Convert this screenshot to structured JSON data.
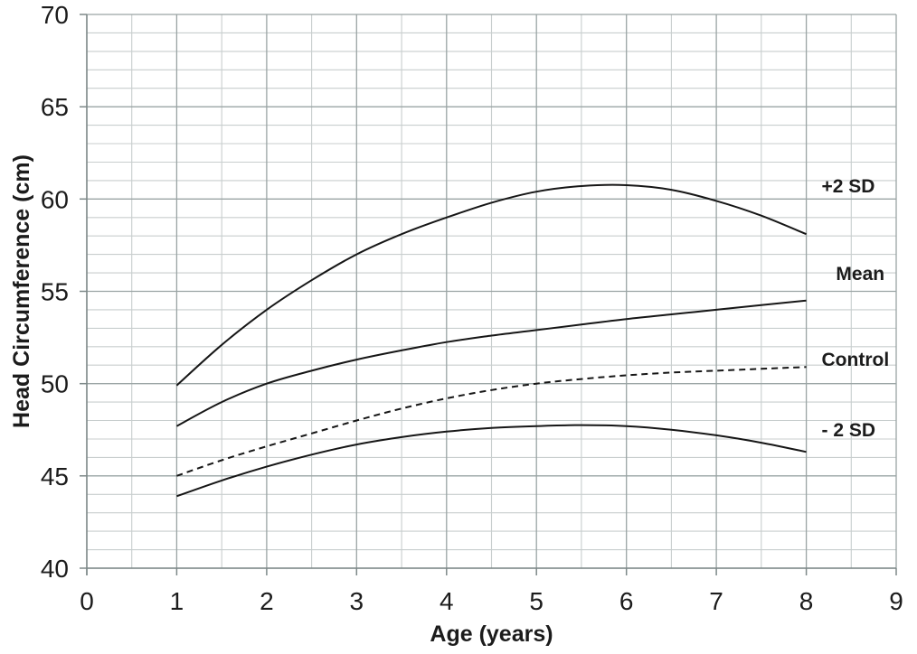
{
  "chart_data": {
    "type": "line",
    "title": "",
    "xlabel": "Age (years)",
    "ylabel": "Head Circumference (cm)",
    "xlim": [
      0,
      9
    ],
    "ylim": [
      40,
      70
    ],
    "x_major_ticks": [
      0,
      1,
      2,
      3,
      4,
      5,
      6,
      7,
      8,
      9
    ],
    "y_major_ticks": [
      40,
      45,
      50,
      55,
      60,
      65,
      70
    ],
    "x_minor_step": 0.5,
    "y_minor_step": 1,
    "grid": "major and minor gridlines on",
    "legend_position": "labels at right of curves",
    "x": [
      1,
      1.5,
      2,
      2.5,
      3,
      3.5,
      4,
      4.5,
      5,
      5.5,
      6,
      6.5,
      7,
      7.5,
      8
    ],
    "series": [
      {
        "name": "+2 SD",
        "style": "solid",
        "values": [
          49.9,
          52.1,
          54.0,
          55.6,
          57.0,
          58.1,
          59.0,
          59.8,
          60.4,
          60.7,
          60.75,
          60.5,
          59.9,
          59.1,
          58.1
        ],
        "label": "+2 SD",
        "label_x": 8.17,
        "label_y": 60.7
      },
      {
        "name": "Mean",
        "style": "solid",
        "values": [
          47.7,
          49.0,
          50.0,
          50.7,
          51.3,
          51.8,
          52.25,
          52.6,
          52.9,
          53.2,
          53.5,
          53.75,
          54.0,
          54.25,
          54.5
        ],
        "label": "Mean",
        "label_x": 8.33,
        "label_y": 55.95
      },
      {
        "name": "Control",
        "style": "dashed",
        "values": [
          45.0,
          45.85,
          46.6,
          47.3,
          48.0,
          48.65,
          49.2,
          49.65,
          50.0,
          50.25,
          50.45,
          50.6,
          50.7,
          50.8,
          50.9
        ],
        "label": "Control",
        "label_x": 8.17,
        "label_y": 51.3
      },
      {
        "name": "- 2 SD",
        "style": "solid",
        "values": [
          43.9,
          44.75,
          45.5,
          46.15,
          46.7,
          47.1,
          47.4,
          47.6,
          47.7,
          47.75,
          47.7,
          47.5,
          47.2,
          46.8,
          46.3
        ],
        "label": "- 2 SD",
        "label_x": 8.17,
        "label_y": 47.5
      }
    ],
    "colors": {
      "line": "#161616",
      "grid_minor": "#c8cece",
      "grid_major": "#9aa4a4",
      "axis": "#7d8888",
      "text": "#1c1c1c",
      "background": "#ffffff"
    }
  }
}
